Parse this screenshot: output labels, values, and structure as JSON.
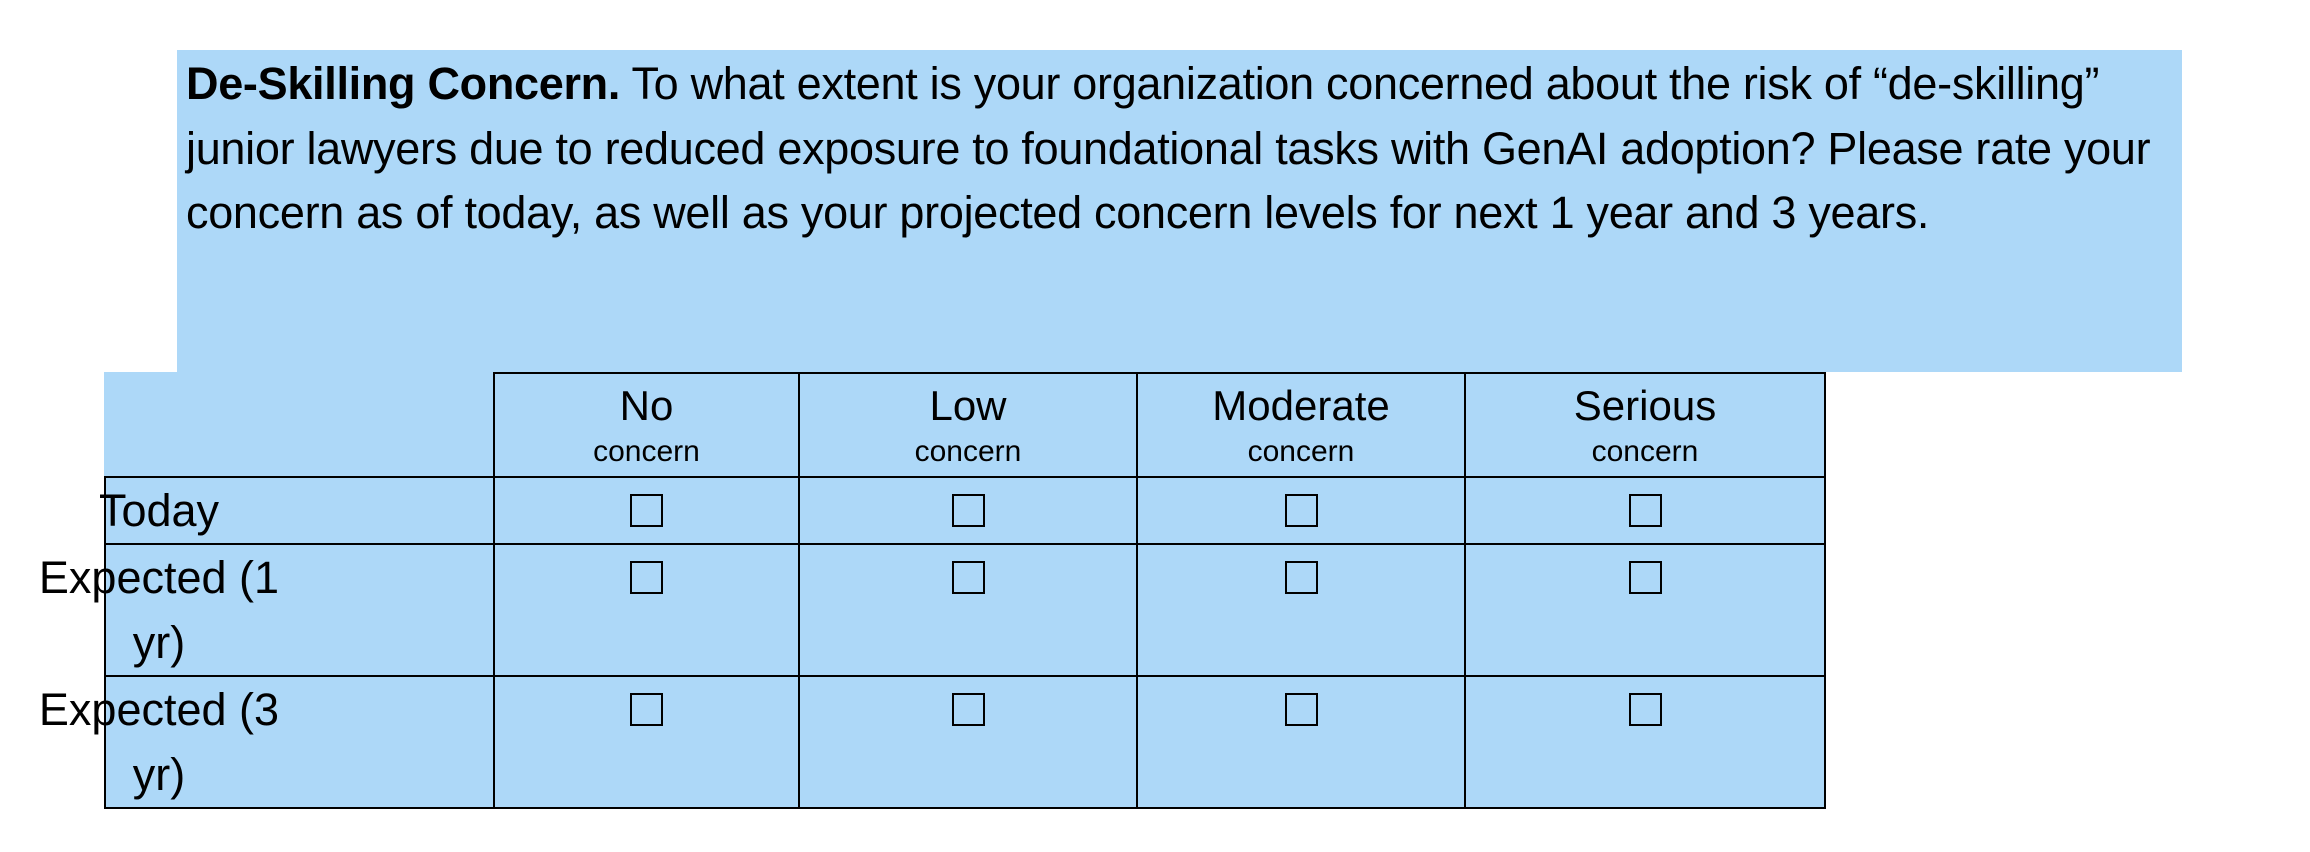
{
  "question": {
    "title": "De-Skilling Concern.",
    "body": " To what extent is your organization concerned about the risk of “de-skilling” junior lawyers due to reduced exposure to foundational tasks with GenAI adoption? Please rate your concern as of today, as well as your projected concern levels for next 1 year and 3 years."
  },
  "grid": {
    "columns": [
      {
        "main": "No",
        "sub": "concern"
      },
      {
        "main": "Low",
        "sub": "concern"
      },
      {
        "main": "Moderate",
        "sub": "concern"
      },
      {
        "main": "Serious",
        "sub": "concern"
      }
    ],
    "rows": [
      {
        "label": "Today"
      },
      {
        "label": "Expected (1 yr)"
      },
      {
        "label": "Expected (3 yr)"
      }
    ],
    "checkbox_glyph": "empty-checkbox",
    "checked": [
      [
        false,
        false,
        false,
        false
      ],
      [
        false,
        false,
        false,
        false
      ],
      [
        false,
        false,
        false,
        false
      ]
    ]
  },
  "colors": {
    "highlight": "#add8f8",
    "border": "#000000",
    "text": "#000000"
  }
}
